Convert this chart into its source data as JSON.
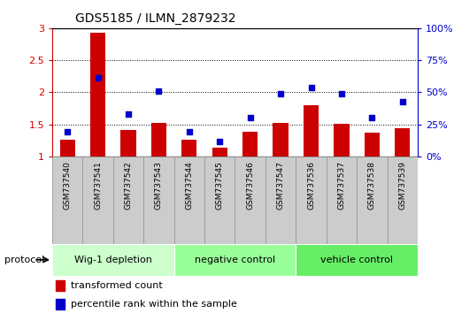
{
  "title": "GDS5185 / ILMN_2879232",
  "samples": [
    "GSM737540",
    "GSM737541",
    "GSM737542",
    "GSM737543",
    "GSM737544",
    "GSM737545",
    "GSM737546",
    "GSM737547",
    "GSM737536",
    "GSM737537",
    "GSM737538",
    "GSM737539"
  ],
  "bar_values": [
    1.26,
    2.93,
    1.42,
    1.53,
    1.26,
    1.14,
    1.38,
    1.52,
    1.8,
    1.51,
    1.37,
    1.44
  ],
  "dot_values_pct": [
    19,
    61,
    33,
    51,
    19,
    12,
    30,
    49,
    54,
    49,
    30,
    43
  ],
  "bar_color": "#cc0000",
  "dot_color": "#0000cc",
  "ylim_left": [
    1.0,
    3.0
  ],
  "ylim_right": [
    0,
    100
  ],
  "yticks_left": [
    1.0,
    1.5,
    2.0,
    2.5,
    3.0
  ],
  "ytick_labels_left": [
    "1",
    "1.5",
    "2",
    "2.5",
    "3"
  ],
  "yticks_right": [
    0,
    25,
    50,
    75,
    100
  ],
  "ytick_labels_right": [
    "0%",
    "25%",
    "50%",
    "75%",
    "100%"
  ],
  "groups": [
    {
      "label": "Wig-1 depletion",
      "start": 0,
      "end": 3,
      "color": "#ccffcc"
    },
    {
      "label": "negative control",
      "start": 4,
      "end": 7,
      "color": "#99ff99"
    },
    {
      "label": "vehicle control",
      "start": 8,
      "end": 11,
      "color": "#66ee66"
    }
  ],
  "protocol_label": "protocol",
  "legend_bar": "transformed count",
  "legend_dot": "percentile rank within the sample",
  "tick_color_left": "#cc0000",
  "tick_color_right": "#0000cc",
  "background_color": "#ffffff",
  "plot_bg_color": "#ffffff",
  "sample_bg_color": "#cccccc",
  "sample_border_color": "#999999"
}
